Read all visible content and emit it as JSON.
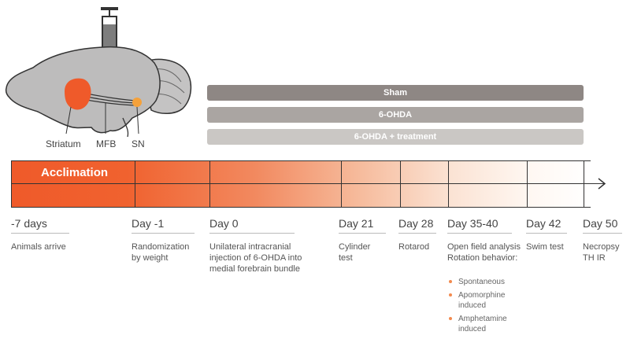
{
  "brain": {
    "labels": {
      "striatum": "Striatum",
      "mfb": "MFB",
      "sn": "SN"
    },
    "colors": {
      "brain": "#bdbcbc",
      "striatum": "#ef5a2a",
      "sn": "#f5a13a",
      "outline": "#333333"
    }
  },
  "groups": [
    {
      "label": "Sham",
      "color": "#8e8784"
    },
    {
      "label": "6-OHDA",
      "color": "#aaa5a2"
    },
    {
      "label": "6-OHDA + treatment",
      "color": "#cac7c4"
    }
  ],
  "timeline": {
    "acclimation_label": "Acclimation",
    "accent_color": "#ef5a2a"
  },
  "events": [
    {
      "day": "-7 days",
      "description": "Animals arrive"
    },
    {
      "day": "Day -1",
      "description": "Randomization by weight"
    },
    {
      "day": "Day 0",
      "description": "Unilateral intracranial injection of 6-OHDA into medial forebrain bundle"
    },
    {
      "day": "Day 21",
      "description": "Cylinder test"
    },
    {
      "day": "Day 28",
      "description": "Rotarod"
    },
    {
      "day": "Day 35-40",
      "description": "Open field analysis Rotation behavior:",
      "subitems": [
        "Spontaneous",
        "Apomorphine induced",
        "Amphetamine induced"
      ]
    },
    {
      "day": "Day 42",
      "description": "Swim test"
    },
    {
      "day": "Day 50",
      "description": "Necropsy TH IR"
    }
  ]
}
